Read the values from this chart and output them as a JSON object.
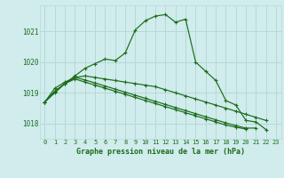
{
  "title": "Graphe pression niveau de la mer (hPa)",
  "bg_color": "#d0ecec",
  "grid_color": "#b8d8d8",
  "line_color": "#1a6b1a",
  "x_labels": [
    "0",
    "1",
    "2",
    "3",
    "4",
    "5",
    "6",
    "7",
    "8",
    "9",
    "10",
    "11",
    "12",
    "13",
    "14",
    "15",
    "16",
    "17",
    "18",
    "19",
    "20",
    "21",
    "22",
    "23"
  ],
  "ylim": [
    1017.5,
    1021.85
  ],
  "yticks": [
    1018,
    1019,
    1020,
    1021
  ],
  "series": [
    [
      1018.7,
      1019.0,
      1019.3,
      1019.55,
      1019.8,
      1019.95,
      1020.1,
      1020.05,
      1020.3,
      1021.05,
      1021.35,
      1021.5,
      1021.55,
      1021.3,
      1021.4,
      1020.0,
      1019.7,
      1019.4,
      1018.75,
      1018.6,
      1018.1,
      1018.05,
      1017.8,
      null
    ],
    [
      1018.7,
      1019.05,
      1019.3,
      1019.5,
      1019.55,
      1019.5,
      1019.45,
      1019.4,
      1019.35,
      1019.3,
      1019.25,
      1019.2,
      1019.1,
      1019.0,
      1018.9,
      1018.8,
      1018.7,
      1018.6,
      1018.5,
      1018.4,
      1018.3,
      1018.2,
      1018.1,
      null
    ],
    [
      1018.7,
      1019.05,
      1019.3,
      1019.45,
      1019.35,
      1019.25,
      1019.15,
      1019.05,
      1018.95,
      1018.85,
      1018.75,
      1018.65,
      1018.55,
      1018.45,
      1018.35,
      1018.25,
      1018.15,
      1018.05,
      1017.95,
      1017.88,
      1017.82,
      null,
      null,
      null
    ],
    [
      1018.7,
      1019.15,
      1019.35,
      1019.5,
      1019.42,
      1019.32,
      1019.22,
      1019.12,
      1019.02,
      1018.92,
      1018.82,
      1018.72,
      1018.62,
      1018.52,
      1018.42,
      1018.32,
      1018.22,
      1018.12,
      1018.02,
      1017.93,
      1017.85,
      1017.85,
      null,
      null
    ]
  ]
}
